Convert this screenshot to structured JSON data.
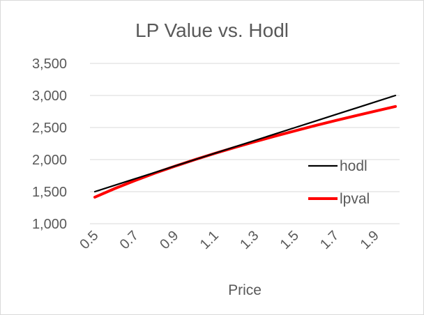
{
  "chart_data": {
    "type": "line",
    "title": "LP Value vs. Hodl",
    "xlabel": "Price",
    "ylabel": "",
    "categories": [
      "0.5",
      "0.6",
      "0.7",
      "0.8",
      "0.9",
      "1",
      "1.1",
      "1.2",
      "1.3",
      "1.4",
      "1.5",
      "1.6",
      "1.7",
      "1.8",
      "1.9",
      "2"
    ],
    "x_tick_labels": [
      "0.5",
      "0.7",
      "0.9",
      "1.1",
      "1.3",
      "1.5",
      "1.7",
      "1.9"
    ],
    "y_tick_labels": [
      "1,000",
      "1,500",
      "2,000",
      "2,500",
      "3,000",
      "3,500"
    ],
    "ylim": [
      1000,
      3500
    ],
    "grid": true,
    "legend_position": "right",
    "series": [
      {
        "name": "hodl",
        "color": "#000000",
        "values": [
          1500,
          1600,
          1700,
          1800,
          1900,
          2000,
          2100,
          2200,
          2300,
          2400,
          2500,
          2600,
          2700,
          2800,
          2900,
          3000
        ]
      },
      {
        "name": "lpval",
        "color": "#ff0000",
        "values": [
          1414,
          1549,
          1673,
          1789,
          1897,
          2000,
          2098,
          2191,
          2280,
          2366,
          2449,
          2530,
          2608,
          2683,
          2757,
          2828
        ]
      }
    ]
  }
}
